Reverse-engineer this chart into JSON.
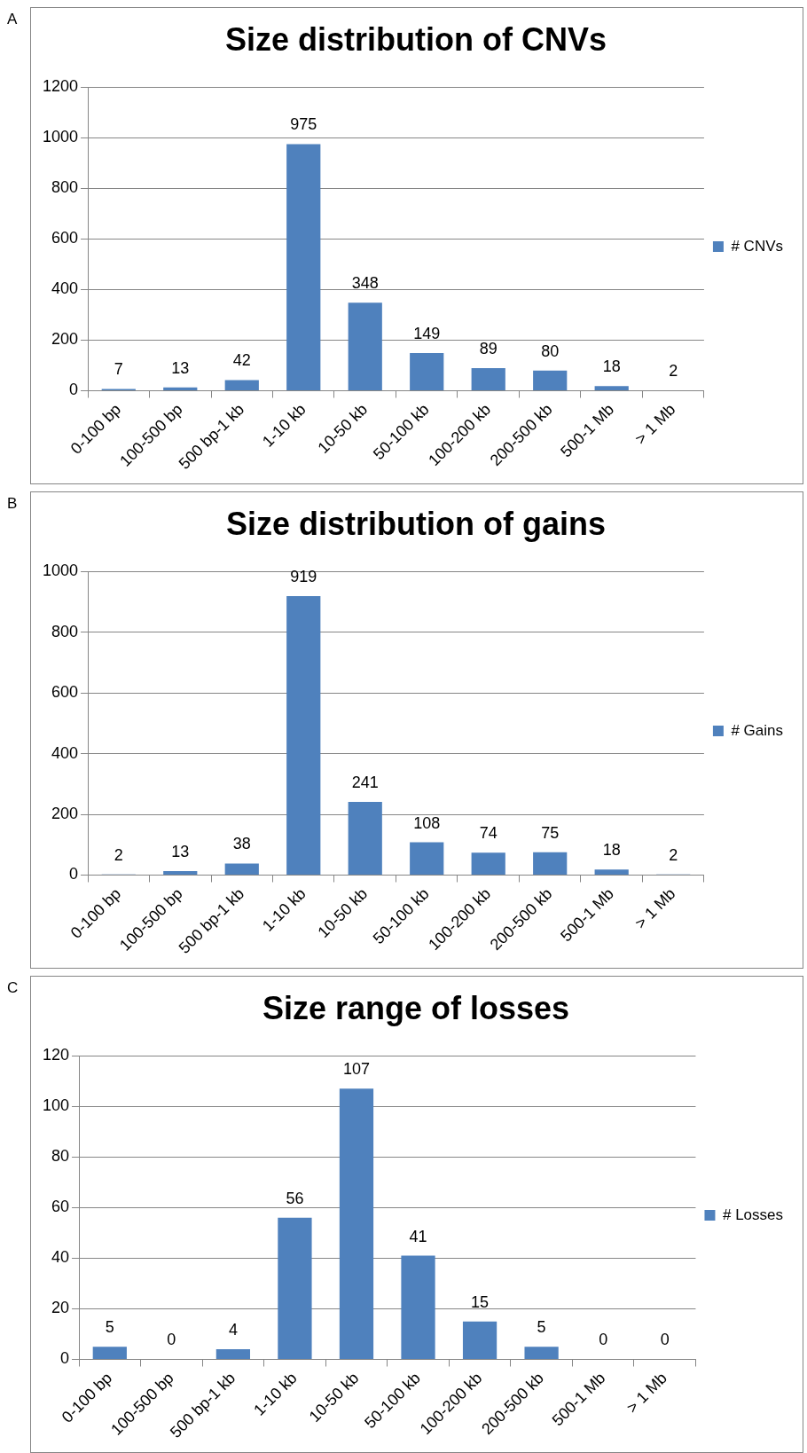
{
  "chart_data": [
    {
      "type": "bar",
      "title": "Size distribution of CNVs",
      "annotations": [
        "A"
      ],
      "categories": [
        "0-100 bp",
        "100-500 bp",
        "500 bp-1 kb",
        "1-10 kb",
        "10-50 kb",
        "50-100 kb",
        "100-200 kb",
        "200-500 kb",
        "500-1 Mb",
        "> 1 Mb"
      ],
      "series": [
        {
          "name": "# CNVs",
          "color": "#4f81bd",
          "values": [
            7,
            13,
            42,
            975,
            348,
            149,
            89,
            80,
            18,
            2
          ]
        }
      ],
      "ylim": [
        0,
        1200
      ],
      "yticks": [
        0,
        200,
        400,
        600,
        800,
        1000,
        1200
      ],
      "grid": "y",
      "legend": "right",
      "data_labels": true
    },
    {
      "type": "bar",
      "title": "Size distribution of gains",
      "annotations": [
        "B"
      ],
      "categories": [
        "0-100 bp",
        "100-500 bp",
        "500 bp-1 kb",
        "1-10 kb",
        "10-50 kb",
        "50-100 kb",
        "100-200 kb",
        "200-500 kb",
        "500-1 Mb",
        "> 1 Mb"
      ],
      "series": [
        {
          "name": "# Gains",
          "color": "#4f81bd",
          "values": [
            2,
            13,
            38,
            919,
            241,
            108,
            74,
            75,
            18,
            2
          ]
        }
      ],
      "ylim": [
        0,
        1000
      ],
      "yticks": [
        0,
        200,
        400,
        600,
        800,
        1000
      ],
      "grid": "y",
      "legend": "right",
      "data_labels": true
    },
    {
      "type": "bar",
      "title": "Size range of losses",
      "annotations": [
        "C"
      ],
      "categories": [
        "0-100 bp",
        "100-500 bp",
        "500 bp-1 kb",
        "1-10 kb",
        "10-50 kb",
        "50-100 kb",
        "100-200 kb",
        "200-500 kb",
        "500-1 Mb",
        "> 1 Mb"
      ],
      "series": [
        {
          "name": "# Losses",
          "color": "#4f81bd",
          "values": [
            5,
            0,
            4,
            56,
            107,
            41,
            15,
            5,
            0,
            0
          ]
        }
      ],
      "ylim": [
        0,
        120
      ],
      "yticks": [
        0,
        20,
        40,
        60,
        80,
        100,
        120
      ],
      "grid": "y",
      "legend": "right",
      "data_labels": true
    }
  ]
}
